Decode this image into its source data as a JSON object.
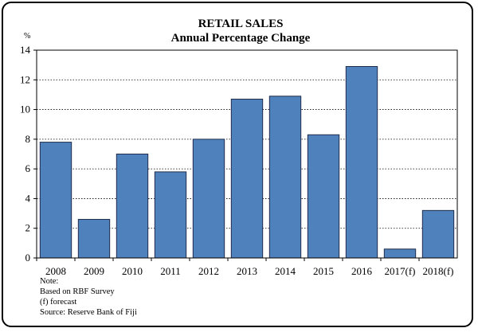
{
  "chart_data": {
    "type": "bar",
    "title": "RETAIL SALES",
    "subtitle": "Annual Percentage Change",
    "ylabel": "%",
    "xlabel": "",
    "ylim": [
      0,
      14
    ],
    "yticks": [
      0,
      2,
      4,
      6,
      8,
      10,
      12,
      14
    ],
    "grid": true,
    "categories": [
      "2008",
      "2009",
      "2010",
      "2011",
      "2012",
      "2013",
      "2014",
      "2015",
      "2016",
      "2017(f)",
      "2018(f)"
    ],
    "values": [
      7.8,
      2.6,
      7.0,
      5.8,
      8.0,
      10.7,
      10.9,
      8.3,
      12.9,
      0.6,
      3.2
    ],
    "bar_color": "#4f81bd"
  },
  "notes": [
    "Note:",
    "Based on RBF Survey",
    "(f) forecast",
    "Source: Reserve Bank of Fiji"
  ]
}
